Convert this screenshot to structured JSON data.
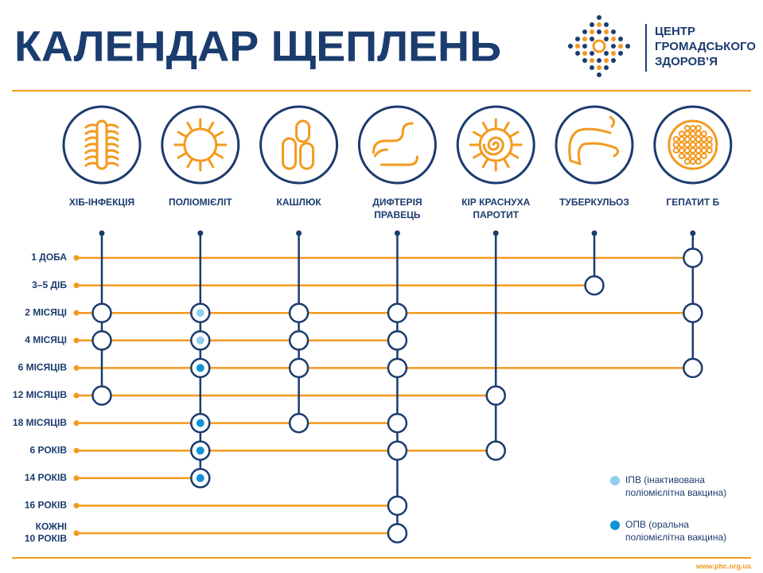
{
  "header": {
    "title": "КАЛЕНДАР ЩЕПЛЕНЬ",
    "logo_lines": [
      "ЦЕНТР",
      "ГРОМАДСЬКОГО",
      "ЗДОРОВ’Я"
    ]
  },
  "vaccines": [
    {
      "lines": [
        "ХІБ-ІНФЕКЦІЯ"
      ]
    },
    {
      "lines": [
        "ПОЛІОМІЄЛІТ"
      ]
    },
    {
      "lines": [
        "КАШЛЮК"
      ]
    },
    {
      "lines": [
        "ДИФТЕРІЯ",
        "ПРАВЕЦЬ"
      ]
    },
    {
      "lines": [
        "КІР КРАСНУХА",
        "ПАРОТИТ"
      ]
    },
    {
      "lines": [
        "ТУБЕРКУЛЬОЗ"
      ]
    },
    {
      "lines": [
        "ГЕПАТИТ Б"
      ]
    }
  ],
  "schedule": [
    {
      "lines": [
        "1 ДОБА"
      ],
      "doses": [
        {
          "vaccine": 6
        }
      ]
    },
    {
      "lines": [
        "3–5 ДІБ"
      ],
      "doses": [
        {
          "vaccine": 5
        }
      ]
    },
    {
      "lines": [
        "2 МІСЯЦІ"
      ],
      "doses": [
        {
          "vaccine": 0
        },
        {
          "vaccine": 1,
          "legend": 0
        },
        {
          "vaccine": 2
        },
        {
          "vaccine": 3
        },
        {
          "vaccine": 6
        }
      ]
    },
    {
      "lines": [
        "4 МІСЯЦІ"
      ],
      "doses": [
        {
          "vaccine": 0
        },
        {
          "vaccine": 1,
          "legend": 0
        },
        {
          "vaccine": 2
        },
        {
          "vaccine": 3
        }
      ]
    },
    {
      "lines": [
        "6 МІСЯЦІВ"
      ],
      "doses": [
        {
          "vaccine": 1,
          "legend": 1
        },
        {
          "vaccine": 2
        },
        {
          "vaccine": 3
        },
        {
          "vaccine": 6
        }
      ]
    },
    {
      "lines": [
        "12 МІСЯЦІВ"
      ],
      "doses": [
        {
          "vaccine": 0
        },
        {
          "vaccine": 4
        }
      ]
    },
    {
      "lines": [
        "18 МІСЯЦІВ"
      ],
      "doses": [
        {
          "vaccine": 1,
          "legend": 1
        },
        {
          "vaccine": 2
        },
        {
          "vaccine": 3
        }
      ]
    },
    {
      "lines": [
        "6 РОКІВ"
      ],
      "doses": [
        {
          "vaccine": 1,
          "legend": 1
        },
        {
          "vaccine": 3
        },
        {
          "vaccine": 4
        }
      ]
    },
    {
      "lines": [
        "14 РОКІВ"
      ],
      "doses": [
        {
          "vaccine": 1,
          "legend": 1
        }
      ]
    },
    {
      "lines": [
        "16 РОКІВ"
      ],
      "doses": [
        {
          "vaccine": 3
        }
      ]
    },
    {
      "lines": [
        "КОЖНІ",
        "10 РОКІВ"
      ],
      "doses": [
        {
          "vaccine": 3
        }
      ]
    }
  ],
  "legend": [
    {
      "color": "#8fd0f2",
      "lines": [
        "ІПВ (інактивована",
        "поліомієлітна вакцина)"
      ]
    },
    {
      "color": "#1192d8",
      "lines": [
        "ОПВ (оральна",
        "поліомієлітна вакцина)"
      ]
    }
  ],
  "footer": {
    "url": "www.phc.org.ua"
  }
}
